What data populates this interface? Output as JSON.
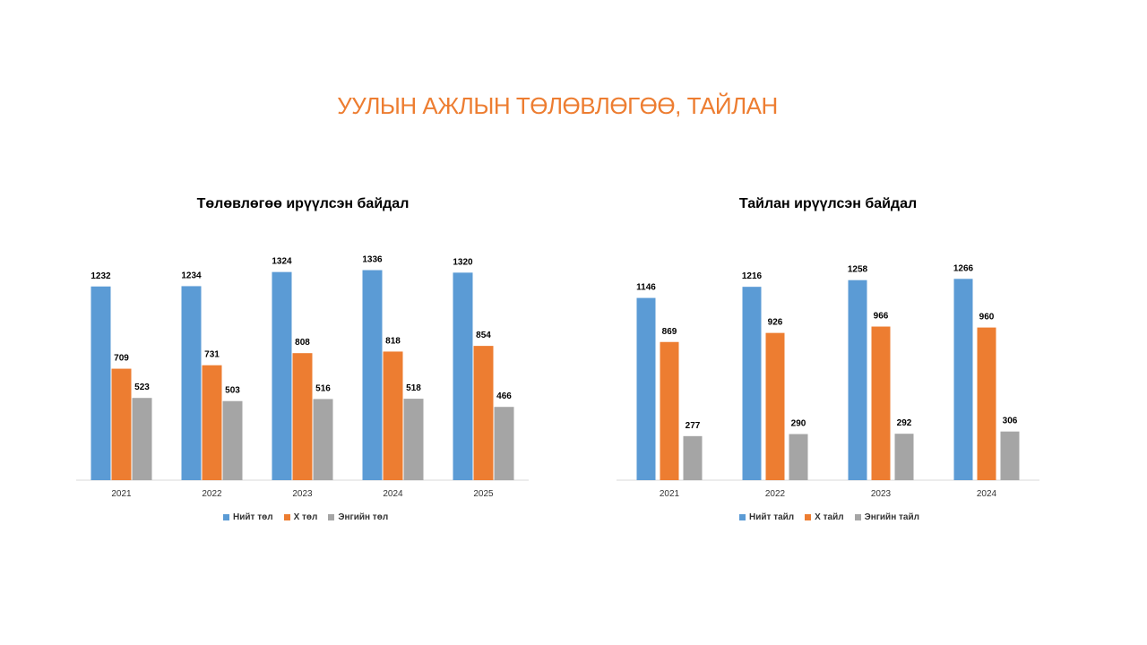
{
  "slide": {
    "title": "УУЛЫН АЖЛЫН ТӨЛӨВЛӨГӨӨ, ТАЙЛАН"
  },
  "colors": {
    "blue": "#5B9BD5",
    "orange": "#ED7D31",
    "gray": "#A5A5A5"
  },
  "chart_data": [
    {
      "type": "bar",
      "title": "Төлөвлөгөө ирүүлсэн байдал",
      "categories": [
        "2021",
        "2022",
        "2023",
        "2024",
        "2025"
      ],
      "series": [
        {
          "name": "Нийт төл",
          "values": [
            1232,
            1234,
            1324,
            1336,
            1320
          ]
        },
        {
          "name": "Х төл",
          "values": [
            709,
            731,
            808,
            818,
            854
          ]
        },
        {
          "name": "Энгийн төл",
          "values": [
            523,
            503,
            516,
            518,
            466
          ]
        }
      ],
      "ylim": [
        0,
        1400
      ],
      "grid": false,
      "legend": "bottom"
    },
    {
      "type": "bar",
      "title": "Тайлан ирүүлсэн байдал",
      "categories": [
        "2021",
        "2022",
        "2023",
        "2024"
      ],
      "series": [
        {
          "name": "Нийт тайл",
          "values": [
            1146,
            1216,
            1258,
            1266
          ]
        },
        {
          "name": "Х тайл",
          "values": [
            869,
            926,
            966,
            960
          ]
        },
        {
          "name": "Энгийн тайл",
          "values": [
            277,
            290,
            292,
            306
          ]
        }
      ],
      "ylim": [
        0,
        1400
      ],
      "grid": false,
      "legend": "bottom"
    }
  ]
}
